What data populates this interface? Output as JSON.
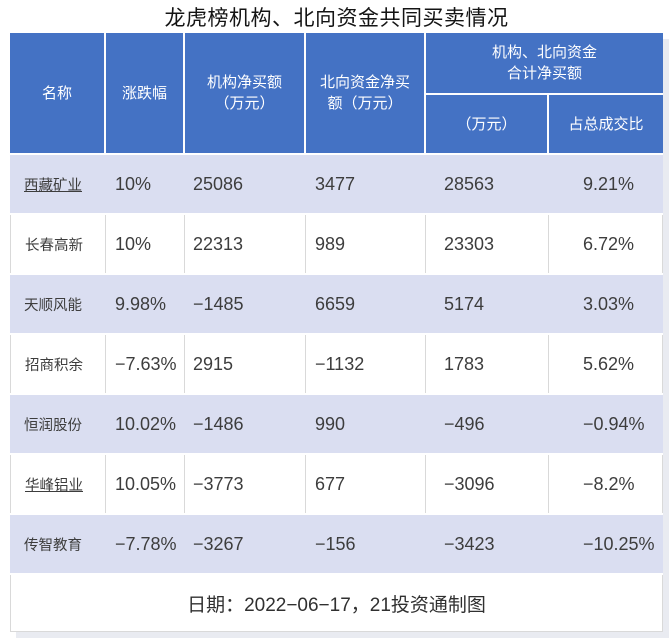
{
  "title": "龙虎榜机构、北向资金共同买卖情况",
  "colors": {
    "header_bg": "#4472c4",
    "header_text": "#ffffff",
    "row_alt_bg": "#dadef1",
    "row_bg": "#ffffff",
    "grid_line": "#d9d9d9",
    "body_text": "#3d3d3d",
    "shadow": "#e9ebf1"
  },
  "table": {
    "headers": {
      "name": "名称",
      "change": "涨跌幅",
      "inst": "机构净买额\n（万元）",
      "north": "北向资金净买\n额（万元）",
      "combined_group": "机构、北向资金\n合计净买额",
      "combined_amount": "（万元）",
      "combined_ratio": "占总成交比"
    },
    "rows": [
      {
        "name": "西藏矿业",
        "underlined": true,
        "change": "10%",
        "inst": "25086",
        "north": "3477",
        "total": "28563",
        "ratio": "9.21%"
      },
      {
        "name": "长春高新",
        "underlined": false,
        "change": "10%",
        "inst": "22313",
        "north": "989",
        "total": "23303",
        "ratio": "6.72%"
      },
      {
        "name": "天顺风能",
        "underlined": false,
        "change": "9.98%",
        "inst": "−1485",
        "north": "6659",
        "total": "5174",
        "ratio": "3.03%"
      },
      {
        "name": "招商积余",
        "underlined": false,
        "change": "−7.63%",
        "inst": "2915",
        "north": "−1132",
        "total": "1783",
        "ratio": "5.62%"
      },
      {
        "name": "恒润股份",
        "underlined": false,
        "change": "10.02%",
        "inst": "−1486",
        "north": "990",
        "total": "−496",
        "ratio": "−0.94%"
      },
      {
        "name": "华峰铝业",
        "underlined": true,
        "change": "10.05%",
        "inst": "−3773",
        "north": "677",
        "total": "−3096",
        "ratio": "−8.2%"
      },
      {
        "name": "传智教育",
        "underlined": false,
        "change": "−7.78%",
        "inst": "−3267",
        "north": "−156",
        "total": "−3423",
        "ratio": "−10.25%"
      }
    ],
    "footer": "日期：2022−06−17，21投资通制图"
  },
  "chart_data": {
    "type": "table",
    "title": "龙虎榜机构、北向资金共同买卖情况",
    "columns": [
      "名称",
      "涨跌幅",
      "机构净买额（万元）",
      "北向资金净买额（万元）",
      "机构、北向资金合计净买额（万元）",
      "机构、北向资金合计净买额占总成交比"
    ],
    "rows": [
      [
        "西藏矿业",
        "10%",
        25086,
        3477,
        28563,
        "9.21%"
      ],
      [
        "长春高新",
        "10%",
        22313,
        989,
        23303,
        "6.72%"
      ],
      [
        "天顺风能",
        "9.98%",
        -1485,
        6659,
        5174,
        "3.03%"
      ],
      [
        "招商积余",
        "-7.63%",
        2915,
        -1132,
        1783,
        "5.62%"
      ],
      [
        "恒润股份",
        "10.02%",
        -1486,
        990,
        -496,
        "-0.94%"
      ],
      [
        "华峰铝业",
        "10.05%",
        -3773,
        677,
        -3096,
        "-8.2%"
      ],
      [
        "传智教育",
        "-7.78%",
        -3267,
        -156,
        -3423,
        "-10.25%"
      ]
    ],
    "footnote": "日期：2022-06-17，21投资通制图"
  }
}
